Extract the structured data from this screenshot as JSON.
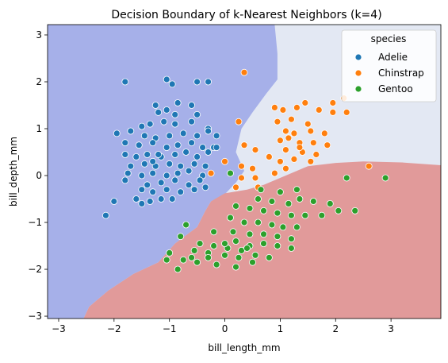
{
  "chart_data": {
    "type": "scatter",
    "title": "Decision Boundary of k-Nearest Neighbors (k=4)",
    "xlabel": "bill_length_mm",
    "ylabel": "bill_depth_mm",
    "xlim": [
      -3.2,
      3.9
    ],
    "ylim": [
      -3.05,
      3.22
    ],
    "xticks": [
      -3,
      -2,
      -1,
      0,
      1,
      2,
      3
    ],
    "yticks": [
      -3,
      -2,
      -1,
      0,
      1,
      2,
      3
    ],
    "grid": false,
    "legend": {
      "title": "species",
      "placement": "upper right",
      "entries": [
        "Adelie",
        "Chinstrap",
        "Gentoo"
      ]
    },
    "colors": {
      "Adelie": "#1f77b4",
      "Chinstrap": "#ff7f0e",
      "Gentoo": "#2ca02c",
      "region_Adelie": "#a6b0e9",
      "region_Chinstrap": "#e3e8f3",
      "region_Gentoo": "#e19a9a"
    },
    "regions": {
      "Adelie": [
        [
          -3.2,
          -3.05
        ],
        [
          -2.55,
          -3.05
        ],
        [
          -2.45,
          -2.8
        ],
        [
          -2.1,
          -2.45
        ],
        [
          -1.65,
          -2.1
        ],
        [
          -1.2,
          -1.85
        ],
        [
          -0.9,
          -1.45
        ],
        [
          -0.5,
          -1.1
        ],
        [
          -0.35,
          -0.75
        ],
        [
          -0.25,
          -0.55
        ],
        [
          0.0,
          -0.4
        ],
        [
          0.2,
          -0.15
        ],
        [
          0.35,
          0.1
        ],
        [
          0.2,
          0.5
        ],
        [
          0.3,
          1.0
        ],
        [
          0.5,
          1.35
        ],
        [
          0.75,
          1.75
        ],
        [
          0.95,
          2.05
        ],
        [
          0.95,
          2.6
        ],
        [
          0.9,
          3.22
        ],
        [
          -3.2,
          3.22
        ]
      ],
      "Gentoo": [
        [
          -2.55,
          -3.05
        ],
        [
          3.9,
          -3.05
        ],
        [
          3.9,
          0.22
        ],
        [
          3.2,
          0.28
        ],
        [
          2.5,
          0.3
        ],
        [
          2.0,
          0.27
        ],
        [
          1.5,
          0.2
        ],
        [
          1.1,
          0.0
        ],
        [
          0.7,
          -0.2
        ],
        [
          0.4,
          -0.3
        ],
        [
          0.0,
          -0.38
        ],
        [
          -0.25,
          -0.55
        ],
        [
          -0.35,
          -0.75
        ],
        [
          -0.5,
          -1.1
        ],
        [
          -0.9,
          -1.45
        ],
        [
          -1.2,
          -1.85
        ],
        [
          -1.65,
          -2.1
        ],
        [
          -2.1,
          -2.45
        ],
        [
          -2.45,
          -2.8
        ]
      ]
    },
    "series": [
      {
        "name": "Adelie",
        "points": [
          [
            -1.8,
            2.0
          ],
          [
            -1.05,
            2.05
          ],
          [
            -0.95,
            1.95
          ],
          [
            -0.5,
            2.0
          ],
          [
            -0.3,
            2.0
          ],
          [
            -1.25,
            1.5
          ],
          [
            -1.05,
            1.4
          ],
          [
            -0.85,
            1.55
          ],
          [
            -0.6,
            1.5
          ],
          [
            -0.5,
            1.3
          ],
          [
            -1.2,
            1.35
          ],
          [
            -0.9,
            1.3
          ],
          [
            -1.5,
            1.05
          ],
          [
            -1.35,
            1.1
          ],
          [
            -1.1,
            1.15
          ],
          [
            -0.9,
            1.1
          ],
          [
            -0.6,
            1.15
          ],
          [
            -0.3,
            1.0
          ],
          [
            -1.95,
            0.9
          ],
          [
            -1.7,
            0.95
          ],
          [
            -1.45,
            0.85
          ],
          [
            -1.25,
            0.8
          ],
          [
            -1.0,
            0.85
          ],
          [
            -0.75,
            0.9
          ],
          [
            -0.5,
            0.85
          ],
          [
            -0.3,
            0.95
          ],
          [
            -0.15,
            0.85
          ],
          [
            -1.8,
            0.7
          ],
          [
            -1.55,
            0.65
          ],
          [
            -1.3,
            0.7
          ],
          [
            -1.05,
            0.6
          ],
          [
            -0.85,
            0.65
          ],
          [
            -0.6,
            0.7
          ],
          [
            -0.4,
            0.6
          ],
          [
            -0.2,
            0.6
          ],
          [
            -1.8,
            0.45
          ],
          [
            -1.6,
            0.4
          ],
          [
            -1.4,
            0.45
          ],
          [
            -1.15,
            0.4
          ],
          [
            -0.9,
            0.45
          ],
          [
            -0.7,
            0.5
          ],
          [
            -0.5,
            0.4
          ],
          [
            -0.3,
            0.5
          ],
          [
            -0.15,
            0.6
          ],
          [
            -1.7,
            0.2
          ],
          [
            -1.45,
            0.25
          ],
          [
            -1.25,
            0.2
          ],
          [
            -1.0,
            0.25
          ],
          [
            -0.8,
            0.2
          ],
          [
            -0.55,
            0.25
          ],
          [
            -0.35,
            0.2
          ],
          [
            -1.75,
            0.05
          ],
          [
            -1.5,
            0.0
          ],
          [
            -1.3,
            0.05
          ],
          [
            -1.05,
            0.0
          ],
          [
            -0.85,
            0.05
          ],
          [
            -0.65,
            0.1
          ],
          [
            -0.4,
            0.0
          ],
          [
            -1.8,
            -0.1
          ],
          [
            -1.4,
            -0.2
          ],
          [
            -1.15,
            -0.15
          ],
          [
            -0.9,
            -0.1
          ],
          [
            -0.65,
            -0.2
          ],
          [
            -0.45,
            -0.1
          ],
          [
            -1.5,
            -0.3
          ],
          [
            -1.3,
            -0.35
          ],
          [
            -1.05,
            -0.3
          ],
          [
            -0.8,
            -0.35
          ],
          [
            -0.55,
            -0.3
          ],
          [
            -0.35,
            -0.25
          ],
          [
            -1.6,
            -0.5
          ],
          [
            -1.35,
            -0.55
          ],
          [
            -1.15,
            -0.5
          ],
          [
            -0.95,
            -0.5
          ],
          [
            -2.0,
            -0.55
          ],
          [
            -1.5,
            -0.6
          ],
          [
            -2.15,
            -0.85
          ],
          [
            -1.3,
            0.3
          ],
          [
            -1.2,
            0.45
          ]
        ]
      },
      {
        "name": "Chinstrap",
        "points": [
          [
            0.35,
            2.2
          ],
          [
            1.45,
            1.55
          ],
          [
            1.95,
            1.55
          ],
          [
            2.15,
            1.65
          ],
          [
            0.9,
            1.45
          ],
          [
            1.05,
            1.4
          ],
          [
            1.3,
            1.45
          ],
          [
            1.7,
            1.4
          ],
          [
            1.95,
            1.35
          ],
          [
            2.2,
            1.35
          ],
          [
            0.95,
            1.15
          ],
          [
            1.2,
            1.2
          ],
          [
            1.5,
            1.1
          ],
          [
            0.25,
            1.15
          ],
          [
            1.1,
            0.95
          ],
          [
            1.25,
            0.9
          ],
          [
            1.55,
            0.95
          ],
          [
            1.8,
            0.9
          ],
          [
            1.0,
            0.75
          ],
          [
            1.15,
            0.8
          ],
          [
            1.35,
            0.7
          ],
          [
            1.6,
            0.7
          ],
          [
            1.85,
            0.65
          ],
          [
            0.35,
            0.65
          ],
          [
            0.55,
            0.55
          ],
          [
            1.1,
            0.55
          ],
          [
            1.4,
            0.5
          ],
          [
            1.65,
            0.45
          ],
          [
            0.8,
            0.4
          ],
          [
            0.0,
            0.3
          ],
          [
            1.0,
            0.3
          ],
          [
            1.25,
            0.35
          ],
          [
            1.55,
            0.3
          ],
          [
            0.3,
            0.2
          ],
          [
            0.5,
            0.15
          ],
          [
            1.1,
            0.15
          ],
          [
            -0.25,
            0.05
          ],
          [
            0.3,
            -0.05
          ],
          [
            0.55,
            -0.05
          ],
          [
            0.9,
            0.05
          ],
          [
            0.6,
            -0.25
          ],
          [
            0.2,
            -0.25
          ],
          [
            2.6,
            0.2
          ],
          [
            1.35,
            0.6
          ]
        ]
      },
      {
        "name": "Gentoo",
        "points": [
          [
            0.1,
            0.05
          ],
          [
            2.2,
            -0.05
          ],
          [
            2.9,
            -0.05
          ],
          [
            0.65,
            -0.3
          ],
          [
            1.0,
            -0.35
          ],
          [
            1.3,
            -0.3
          ],
          [
            0.85,
            -0.55
          ],
          [
            1.15,
            -0.6
          ],
          [
            1.35,
            -0.5
          ],
          [
            1.6,
            -0.55
          ],
          [
            1.9,
            -0.6
          ],
          [
            2.05,
            -0.75
          ],
          [
            2.35,
            -0.75
          ],
          [
            1.75,
            -0.85
          ],
          [
            0.2,
            -0.65
          ],
          [
            0.45,
            -0.7
          ],
          [
            0.7,
            -0.75
          ],
          [
            0.95,
            -0.8
          ],
          [
            1.2,
            -0.85
          ],
          [
            1.45,
            -0.85
          ],
          [
            0.1,
            -0.9
          ],
          [
            0.35,
            -1.0
          ],
          [
            0.6,
            -1.0
          ],
          [
            0.85,
            -1.05
          ],
          [
            1.05,
            -1.1
          ],
          [
            1.3,
            -1.1
          ],
          [
            0.15,
            -1.2
          ],
          [
            0.45,
            -1.25
          ],
          [
            0.7,
            -1.25
          ],
          [
            0.95,
            -1.3
          ],
          [
            1.2,
            -1.35
          ],
          [
            -0.2,
            -1.2
          ],
          [
            -0.7,
            -1.05
          ],
          [
            0.2,
            -1.4
          ],
          [
            0.45,
            -1.5
          ],
          [
            0.7,
            -1.45
          ],
          [
            0.95,
            -1.5
          ],
          [
            1.2,
            -1.55
          ],
          [
            -0.45,
            -1.45
          ],
          [
            -0.2,
            -1.5
          ],
          [
            0.05,
            -1.55
          ],
          [
            0.3,
            -1.6
          ],
          [
            0.55,
            -1.7
          ],
          [
            0.8,
            -1.75
          ],
          [
            -0.8,
            -1.3
          ],
          [
            -0.55,
            -1.6
          ],
          [
            -0.3,
            -1.65
          ],
          [
            0.0,
            -1.7
          ],
          [
            0.25,
            -1.75
          ],
          [
            0.5,
            -1.85
          ],
          [
            -0.75,
            -1.8
          ],
          [
            -0.5,
            -1.85
          ],
          [
            -0.15,
            -1.9
          ],
          [
            0.2,
            -1.95
          ],
          [
            -1.0,
            -1.65
          ],
          [
            -0.85,
            -2.0
          ],
          [
            -0.6,
            -1.75
          ],
          [
            -1.05,
            -1.8
          ],
          [
            -0.3,
            -1.75
          ],
          [
            0.4,
            -1.55
          ],
          [
            0.6,
            -0.5
          ],
          [
            0.0,
            -1.45
          ]
        ]
      }
    ]
  }
}
